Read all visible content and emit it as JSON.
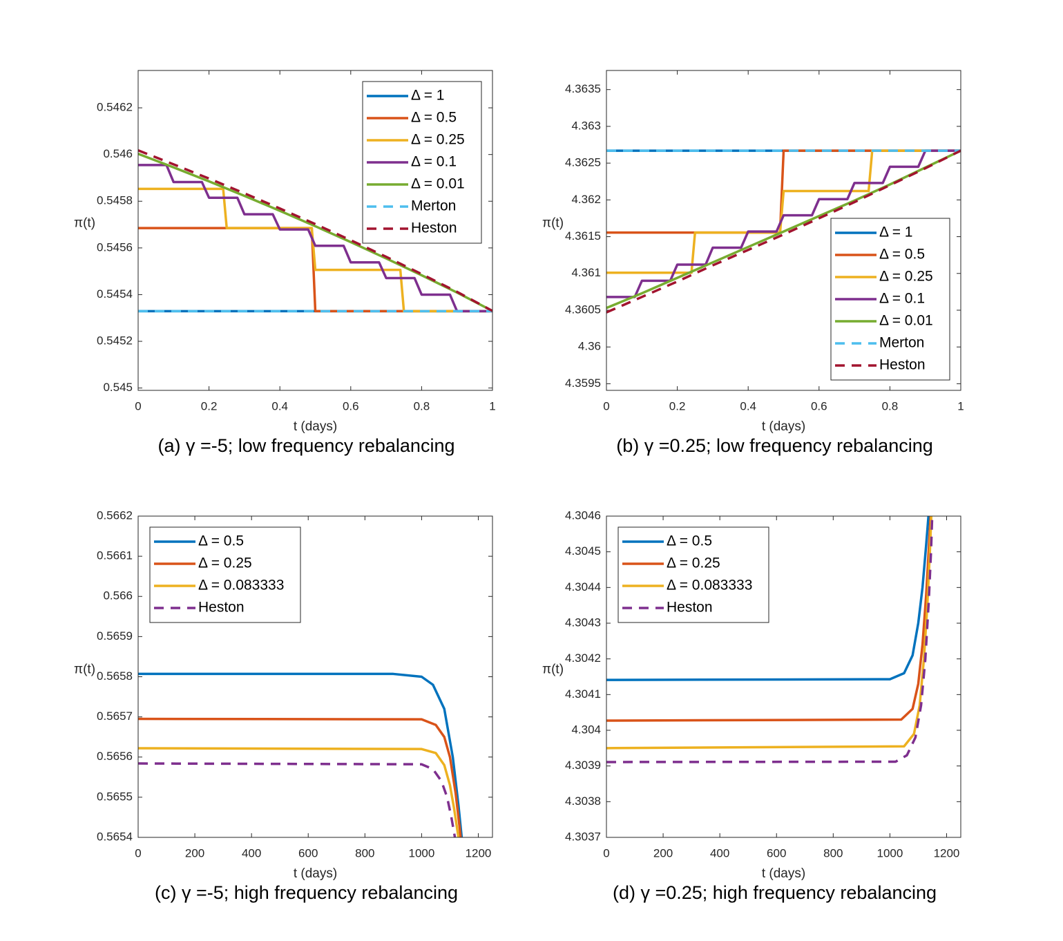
{
  "chart_data": [
    {
      "type": "line",
      "caption": "(a)  γ =-5; low frequency rebalancing",
      "xlabel": "t (days)",
      "ylabel": "π(t)",
      "xlim": [
        0,
        1
      ],
      "xticks": [
        0,
        0.2,
        0.4,
        0.6,
        0.8,
        1
      ],
      "ylim": [
        0.54499,
        0.54636
      ],
      "yticks": [
        0.545,
        0.5452,
        0.5454,
        0.5456,
        0.5458,
        0.546,
        0.5462
      ],
      "legend": "northeast",
      "series": [
        {
          "name": "Δ = 1",
          "color": "#0072bd",
          "style": "solid",
          "x": [
            0,
            1
          ],
          "values": [
            0.545329,
            0.545329
          ]
        },
        {
          "name": "Δ = 0.5",
          "color": "#d95319",
          "style": "solid",
          "x": [
            0,
            0.49,
            0.5,
            1
          ],
          "values": [
            0.545685,
            0.545685,
            0.545329,
            0.545329
          ]
        },
        {
          "name": "Δ = 0.25",
          "color": "#edb120",
          "style": "solid",
          "x": [
            0,
            0.24,
            0.25,
            0.49,
            0.5,
            0.74,
            0.75,
            1
          ],
          "values": [
            0.545853,
            0.545853,
            0.545685,
            0.545685,
            0.545506,
            0.545506,
            0.545329,
            0.545329
          ]
        },
        {
          "name": "Δ = 0.1",
          "color": "#7e2f8e",
          "style": "solid",
          "x": [
            0,
            0.08,
            0.1,
            0.18,
            0.2,
            0.28,
            0.3,
            0.38,
            0.4,
            0.48,
            0.5,
            0.58,
            0.6,
            0.68,
            0.7,
            0.78,
            0.8,
            0.88,
            0.9,
            1
          ],
          "values": [
            0.545955,
            0.545955,
            0.545882,
            0.545882,
            0.545815,
            0.545815,
            0.545744,
            0.545744,
            0.545679,
            0.545679,
            0.545609,
            0.545609,
            0.545538,
            0.545538,
            0.545471,
            0.545471,
            0.5454,
            0.5454,
            0.545329,
            0.545329
          ]
        },
        {
          "name": "Δ = 0.01",
          "color": "#77ac30",
          "style": "solid",
          "x": [
            0,
            0.1,
            0.2,
            0.3,
            0.4,
            0.5,
            0.6,
            0.7,
            0.8,
            0.9,
            1
          ],
          "values": [
            0.546003,
            0.545945,
            0.545885,
            0.545823,
            0.545759,
            0.545693,
            0.545625,
            0.545555,
            0.545483,
            0.545409,
            0.54533
          ]
        },
        {
          "name": "Merton",
          "color": "#4dbeee",
          "style": "dashed",
          "x": [
            0,
            1
          ],
          "values": [
            0.545329,
            0.545329
          ]
        },
        {
          "name": "Heston",
          "color": "#a2142f",
          "style": "dashed",
          "x": [
            0,
            0.1,
            0.2,
            0.3,
            0.4,
            0.5,
            0.6,
            0.7,
            0.8,
            0.9,
            1
          ],
          "values": [
            0.546018,
            0.545958,
            0.545897,
            0.545834,
            0.545769,
            0.545702,
            0.545633,
            0.545562,
            0.545488,
            0.545412,
            0.54533
          ]
        }
      ]
    },
    {
      "type": "line",
      "caption": "(b)  γ =0.25; low frequency rebalancing",
      "xlabel": "t (days)",
      "ylabel": "π(t)",
      "xlim": [
        0,
        1
      ],
      "xticks": [
        0,
        0.2,
        0.4,
        0.6,
        0.8,
        1
      ],
      "ylim": [
        4.35941,
        4.36376
      ],
      "yticks": [
        4.3595,
        4.36,
        4.3605,
        4.361,
        4.3615,
        4.362,
        4.3625,
        4.363,
        4.3635
      ],
      "legend": "southeast",
      "series": [
        {
          "name": "Δ = 1",
          "color": "#0072bd",
          "style": "solid",
          "x": [
            0,
            1
          ],
          "values": [
            4.362669,
            4.362669
          ]
        },
        {
          "name": "Δ = 0.5",
          "color": "#d95319",
          "style": "solid",
          "x": [
            0,
            0.49,
            0.5,
            1
          ],
          "values": [
            4.361556,
            4.361556,
            4.362669,
            4.362669
          ]
        },
        {
          "name": "Δ = 0.25",
          "color": "#edb120",
          "style": "solid",
          "x": [
            0,
            0.24,
            0.25,
            0.49,
            0.5,
            0.74,
            0.75,
            1
          ],
          "values": [
            4.36101,
            4.36101,
            4.361556,
            4.361556,
            4.36212,
            4.36212,
            4.362669,
            4.362669
          ]
        },
        {
          "name": "Δ = 0.1",
          "color": "#7e2f8e",
          "style": "solid",
          "x": [
            0,
            0.08,
            0.1,
            0.18,
            0.2,
            0.28,
            0.3,
            0.38,
            0.4,
            0.48,
            0.5,
            0.58,
            0.6,
            0.68,
            0.7,
            0.78,
            0.8,
            0.88,
            0.9,
            1
          ],
          "values": [
            4.36068,
            4.36068,
            4.3609,
            4.3609,
            4.36112,
            4.36112,
            4.36135,
            4.36135,
            4.36157,
            4.36157,
            4.36179,
            4.36179,
            4.36201,
            4.36201,
            4.36223,
            4.36223,
            4.36245,
            4.36245,
            4.362669,
            4.362669
          ]
        },
        {
          "name": "Δ = 0.01",
          "color": "#77ac30",
          "style": "solid",
          "x": [
            0,
            0.1,
            0.2,
            0.3,
            0.4,
            0.5,
            0.6,
            0.7,
            0.8,
            0.9,
            1
          ],
          "values": [
            4.36053,
            4.36073,
            4.36094,
            4.36115,
            4.36136,
            4.36157,
            4.36178,
            4.36199,
            4.36221,
            4.36244,
            4.36267
          ]
        },
        {
          "name": "Merton",
          "color": "#4dbeee",
          "style": "dashed",
          "x": [
            0,
            1
          ],
          "values": [
            4.362669,
            4.362669
          ]
        },
        {
          "name": "Heston",
          "color": "#a2142f",
          "style": "dashed",
          "x": [
            0,
            0.1,
            0.2,
            0.3,
            0.4,
            0.5,
            0.6,
            0.7,
            0.8,
            0.9,
            1
          ],
          "values": [
            4.36047,
            4.36068,
            4.36089,
            4.36111,
            4.36132,
            4.36153,
            4.36175,
            4.36197,
            4.3622,
            4.36243,
            4.36267
          ]
        }
      ]
    },
    {
      "type": "line",
      "caption": "(c)  γ =-5; high frequency rebalancing",
      "xlabel": "t (days)",
      "ylabel": "π(t)",
      "xlim": [
        0,
        1250
      ],
      "xticks": [
        0,
        200,
        400,
        600,
        800,
        1000,
        1200
      ],
      "ylim": [
        0.5654,
        0.5662
      ],
      "yticks": [
        0.5654,
        0.5655,
        0.5656,
        0.5657,
        0.5658,
        0.5659,
        0.566,
        0.5661,
        0.5662
      ],
      "legend": "northwest",
      "series": [
        {
          "name": "Δ = 0.5",
          "color": "#0072bd",
          "style": "solid",
          "x": [
            0,
            900,
            1000,
            1040,
            1080,
            1110,
            1130,
            1150
          ],
          "values": [
            0.565807,
            0.565807,
            0.5658,
            0.56578,
            0.56572,
            0.5656,
            0.56548,
            0.56534
          ]
        },
        {
          "name": "Δ = 0.25",
          "color": "#d95319",
          "style": "solid",
          "x": [
            0,
            1000,
            1050,
            1080,
            1100,
            1120,
            1135,
            1145
          ],
          "values": [
            0.565695,
            0.565694,
            0.56568,
            0.56565,
            0.5656,
            0.56551,
            0.56542,
            0.56534
          ]
        },
        {
          "name": "Δ = 0.083333",
          "color": "#edb120",
          "style": "solid",
          "x": [
            0,
            1000,
            1050,
            1080,
            1100,
            1115,
            1130,
            1140
          ],
          "values": [
            0.565622,
            0.56562,
            0.56561,
            0.56558,
            0.56553,
            0.56547,
            0.5654,
            0.56534
          ]
        },
        {
          "name": "Heston",
          "color": "#7e2f8e",
          "style": "dashed",
          "x": [
            0,
            1000,
            1040,
            1070,
            1090,
            1105,
            1120,
            1135
          ],
          "values": [
            0.565584,
            0.565582,
            0.56557,
            0.56554,
            0.5655,
            0.56545,
            0.56539,
            0.56532
          ]
        }
      ]
    },
    {
      "type": "line",
      "caption": "(d)  γ =0.25; high frequency rebalancing",
      "xlabel": "t (days)",
      "ylabel": "π(t)",
      "xlim": [
        0,
        1250
      ],
      "xticks": [
        0,
        200,
        400,
        600,
        800,
        1000,
        1200
      ],
      "ylim": [
        4.3037,
        4.3046
      ],
      "yticks": [
        4.3037,
        4.3038,
        4.3039,
        4.304,
        4.3041,
        4.3042,
        4.3043,
        4.3044,
        4.3045,
        4.3046
      ],
      "legend": "northwest",
      "series": [
        {
          "name": "Δ = 0.5",
          "color": "#0072bd",
          "style": "solid",
          "x": [
            0,
            1000,
            1050,
            1080,
            1100,
            1115,
            1128,
            1138
          ],
          "values": [
            4.304141,
            4.304143,
            4.30416,
            4.30421,
            4.3043,
            4.3044,
            4.30452,
            4.30462
          ]
        },
        {
          "name": "Δ = 0.25",
          "color": "#d95319",
          "style": "solid",
          "x": [
            0,
            1040,
            1080,
            1100,
            1115,
            1128,
            1138,
            1145
          ],
          "values": [
            4.304027,
            4.30403,
            4.30406,
            4.30413,
            4.30424,
            4.30438,
            4.30452,
            4.30462
          ]
        },
        {
          "name": "Δ = 0.083333",
          "color": "#edb120",
          "style": "solid",
          "x": [
            0,
            1050,
            1085,
            1105,
            1120,
            1132,
            1141,
            1147
          ],
          "values": [
            4.30395,
            4.303955,
            4.30399,
            4.30407,
            4.3042,
            4.30435,
            4.3045,
            4.30462
          ]
        },
        {
          "name": "Heston",
          "color": "#7e2f8e",
          "style": "dashed",
          "x": [
            0,
            1020,
            1060,
            1090,
            1110,
            1125,
            1137,
            1145,
            1150
          ],
          "values": [
            4.303911,
            4.303912,
            4.30393,
            4.30398,
            4.30407,
            4.3042,
            4.30436,
            4.3045,
            4.30462
          ]
        }
      ]
    }
  ]
}
